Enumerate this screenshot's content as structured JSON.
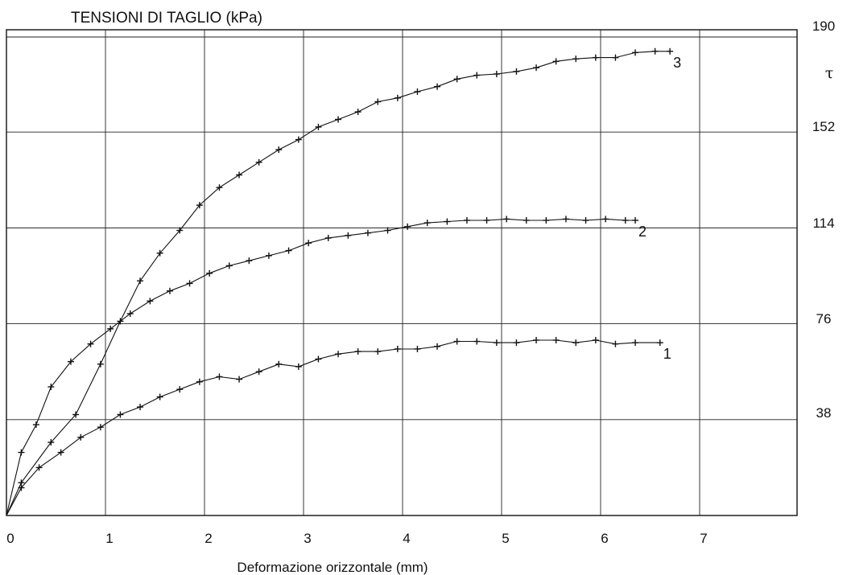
{
  "chart_data": {
    "type": "line",
    "title": "TENSIONI DI TAGLIO (kPa)",
    "xlabel": "Deformazione orizzontale (mm)",
    "ylabel": "τ",
    "xlim": [
      0,
      8
    ],
    "ylim": [
      0,
      190
    ],
    "x_ticks": [
      0,
      1,
      2,
      3,
      4,
      5,
      6,
      7
    ],
    "y_ticks": [
      38,
      76,
      114,
      152,
      190
    ],
    "y_axis_position": "right",
    "grid": true,
    "series": [
      {
        "name": "1",
        "points": [
          [
            0,
            0
          ],
          [
            0.15,
            11
          ],
          [
            0.33,
            19
          ],
          [
            0.55,
            25
          ],
          [
            0.75,
            31
          ],
          [
            0.95,
            35
          ],
          [
            1.15,
            40
          ],
          [
            1.35,
            43
          ],
          [
            1.55,
            47
          ],
          [
            1.75,
            50
          ],
          [
            1.95,
            53
          ],
          [
            2.15,
            55
          ],
          [
            2.35,
            54
          ],
          [
            2.55,
            57
          ],
          [
            2.75,
            60
          ],
          [
            2.95,
            59
          ],
          [
            3.15,
            62
          ],
          [
            3.35,
            64
          ],
          [
            3.55,
            65
          ],
          [
            3.75,
            65
          ],
          [
            3.95,
            66
          ],
          [
            4.15,
            66
          ],
          [
            4.35,
            67
          ],
          [
            4.55,
            69
          ],
          [
            4.75,
            69
          ],
          [
            4.95,
            68.5
          ],
          [
            5.15,
            68.5
          ],
          [
            5.35,
            69.5
          ],
          [
            5.55,
            69.5
          ],
          [
            5.75,
            68.5
          ],
          [
            5.95,
            69.5
          ],
          [
            6.15,
            68
          ],
          [
            6.35,
            68.5
          ],
          [
            6.6,
            68.5
          ]
        ]
      },
      {
        "name": "2",
        "points": [
          [
            0,
            0
          ],
          [
            0.15,
            25
          ],
          [
            0.3,
            36
          ],
          [
            0.45,
            51
          ],
          [
            0.65,
            61
          ],
          [
            0.85,
            68
          ],
          [
            1.05,
            74
          ],
          [
            1.25,
            80
          ],
          [
            1.45,
            85
          ],
          [
            1.65,
            89
          ],
          [
            1.85,
            92
          ],
          [
            2.05,
            96
          ],
          [
            2.25,
            99
          ],
          [
            2.45,
            101
          ],
          [
            2.65,
            103
          ],
          [
            2.85,
            105
          ],
          [
            3.05,
            108
          ],
          [
            3.25,
            110
          ],
          [
            3.45,
            111
          ],
          [
            3.65,
            112
          ],
          [
            3.85,
            113
          ],
          [
            4.05,
            114.5
          ],
          [
            4.25,
            116
          ],
          [
            4.45,
            116.5
          ],
          [
            4.65,
            117
          ],
          [
            4.85,
            117
          ],
          [
            5.05,
            117.5
          ],
          [
            5.25,
            117
          ],
          [
            5.45,
            117
          ],
          [
            5.65,
            117.5
          ],
          [
            5.85,
            117
          ],
          [
            6.05,
            117.5
          ],
          [
            6.25,
            117
          ],
          [
            6.35,
            117
          ]
        ]
      },
      {
        "name": "3",
        "points": [
          [
            0,
            0
          ],
          [
            0.15,
            13
          ],
          [
            0.45,
            29
          ],
          [
            0.7,
            40
          ],
          [
            0.95,
            60
          ],
          [
            1.15,
            77
          ],
          [
            1.35,
            93
          ],
          [
            1.55,
            104
          ],
          [
            1.75,
            113
          ],
          [
            1.95,
            123
          ],
          [
            2.15,
            130
          ],
          [
            2.35,
            135
          ],
          [
            2.55,
            140
          ],
          [
            2.75,
            145
          ],
          [
            2.95,
            149
          ],
          [
            3.15,
            154
          ],
          [
            3.35,
            157
          ],
          [
            3.55,
            160
          ],
          [
            3.75,
            164
          ],
          [
            3.95,
            165.5
          ],
          [
            4.15,
            168
          ],
          [
            4.35,
            170
          ],
          [
            4.55,
            173
          ],
          [
            4.75,
            174.5
          ],
          [
            4.95,
            175
          ],
          [
            5.15,
            176
          ],
          [
            5.35,
            177.5
          ],
          [
            5.55,
            180
          ],
          [
            5.75,
            181
          ],
          [
            5.95,
            181.5
          ],
          [
            6.15,
            181.5
          ],
          [
            6.35,
            183.5
          ],
          [
            6.55,
            184
          ],
          [
            6.7,
            184
          ]
        ]
      }
    ]
  }
}
